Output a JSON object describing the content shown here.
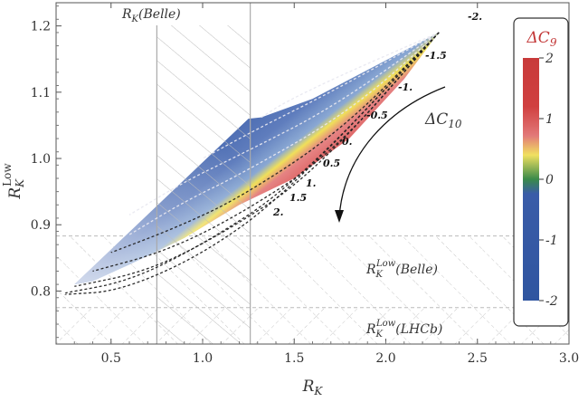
{
  "chart_data": {
    "type": "contour",
    "title": "",
    "xlabel": "R_K",
    "ylabel": "R_K^Low",
    "xlim": [
      0.2,
      3.0
    ],
    "ylim": [
      0.72,
      1.235
    ],
    "x_ticks": [
      0.5,
      1.0,
      1.5,
      2.0,
      2.5,
      3.0
    ],
    "y_ticks": [
      0.8,
      0.9,
      1.0,
      1.1,
      1.2
    ],
    "x_tick_labels": [
      "0.5",
      "1.0",
      "1.5",
      "2.0",
      "2.5",
      "3.0"
    ],
    "y_tick_labels": [
      "0.8",
      "0.9",
      "1.0",
      "1.1",
      "1.2"
    ],
    "bands": [
      {
        "name": "R_K(Belle)",
        "axis": "x",
        "range": [
          0.75,
          1.26
        ],
        "label": "R_K(Belle)"
      },
      {
        "name": "R_K^Low(Belle)",
        "axis": "y",
        "range": [
          0.72,
          0.883
        ],
        "label": "R_K^Low(Belle)"
      },
      {
        "name": "R_K^Low(LHCb)",
        "axis": "y",
        "range": [
          0.72,
          0.775
        ],
        "label": "R_K^Low(LHCb)"
      }
    ],
    "region": {
      "description": "allowed region colored by Delta C9",
      "outline": [
        [
          0.3,
          0.81
        ],
        [
          1.25,
          1.06
        ],
        [
          1.32,
          1.062
        ],
        [
          1.6,
          1.09
        ],
        [
          2.29,
          1.19
        ],
        [
          2.1,
          1.12
        ],
        [
          1.8,
          1.03
        ],
        [
          1.5,
          0.97
        ],
        [
          1.2,
          0.93
        ],
        [
          0.9,
          0.88
        ],
        [
          0.6,
          0.84
        ],
        [
          0.4,
          0.815
        ]
      ]
    },
    "contour_parameter": "Delta C10",
    "contours": [
      {
        "label": "-2.",
        "points": [
          [
            2.29,
            1.19
          ],
          [
            1.75,
            1.125
          ],
          [
            1.45,
            1.085
          ],
          [
            1.32,
            1.062
          ]
        ]
      },
      {
        "label": "-1.5",
        "points": [
          [
            2.29,
            1.19
          ],
          [
            1.7,
            1.1
          ],
          [
            1.3,
            1.045
          ],
          [
            1.0,
            1.0
          ]
        ]
      },
      {
        "label": "-1.",
        "points": [
          [
            2.29,
            1.19
          ],
          [
            1.7,
            1.075
          ],
          [
            1.2,
            1.005
          ],
          [
            0.9,
            0.965
          ],
          [
            0.6,
            0.915
          ]
        ]
      },
      {
        "label": "-0.5",
        "points": [
          [
            2.29,
            1.19
          ],
          [
            1.8,
            1.07
          ],
          [
            1.2,
            0.975
          ],
          [
            0.9,
            0.935
          ],
          [
            0.6,
            0.885
          ]
        ]
      },
      {
        "label": "0.",
        "points": [
          [
            2.29,
            1.19
          ],
          [
            1.75,
            1.04
          ],
          [
            1.2,
            0.94
          ],
          [
            0.85,
            0.895
          ],
          [
            0.5,
            0.858
          ]
        ]
      },
      {
        "label": "0.5",
        "points": [
          [
            2.29,
            1.19
          ],
          [
            1.7,
            1.005
          ],
          [
            1.2,
            0.915
          ],
          [
            0.8,
            0.86
          ],
          [
            0.4,
            0.83
          ]
        ]
      },
      {
        "label": "1.",
        "points": [
          [
            2.29,
            1.19
          ],
          [
            1.6,
            0.975
          ],
          [
            1.1,
            0.885
          ],
          [
            0.7,
            0.83
          ],
          [
            0.3,
            0.807
          ]
        ]
      },
      {
        "label": "1.5",
        "points": [
          [
            2.29,
            1.19
          ],
          [
            1.5,
            0.96
          ],
          [
            1.0,
            0.87
          ],
          [
            0.6,
            0.815
          ],
          [
            0.25,
            0.797
          ]
        ]
      },
      {
        "label": "2.",
        "points": [
          [
            2.29,
            1.19
          ],
          [
            1.45,
            0.945
          ],
          [
            1.0,
            0.855
          ],
          [
            0.55,
            0.8
          ],
          [
            0.25,
            0.795
          ]
        ]
      }
    ],
    "arrow_label": "ΔC10",
    "colorbar": {
      "title": "ΔC9",
      "range": [
        -2,
        2
      ],
      "ticks": [
        2,
        1,
        0,
        -1,
        -2
      ],
      "tick_labels": [
        "2",
        "1",
        "0",
        "-1",
        "-2"
      ],
      "colors": [
        "#3a5ba6",
        "#3a5ba6",
        "#3a8a4a",
        "#f0e060",
        "#e07070",
        "#c93a3a",
        "#c93a3a"
      ]
    }
  }
}
